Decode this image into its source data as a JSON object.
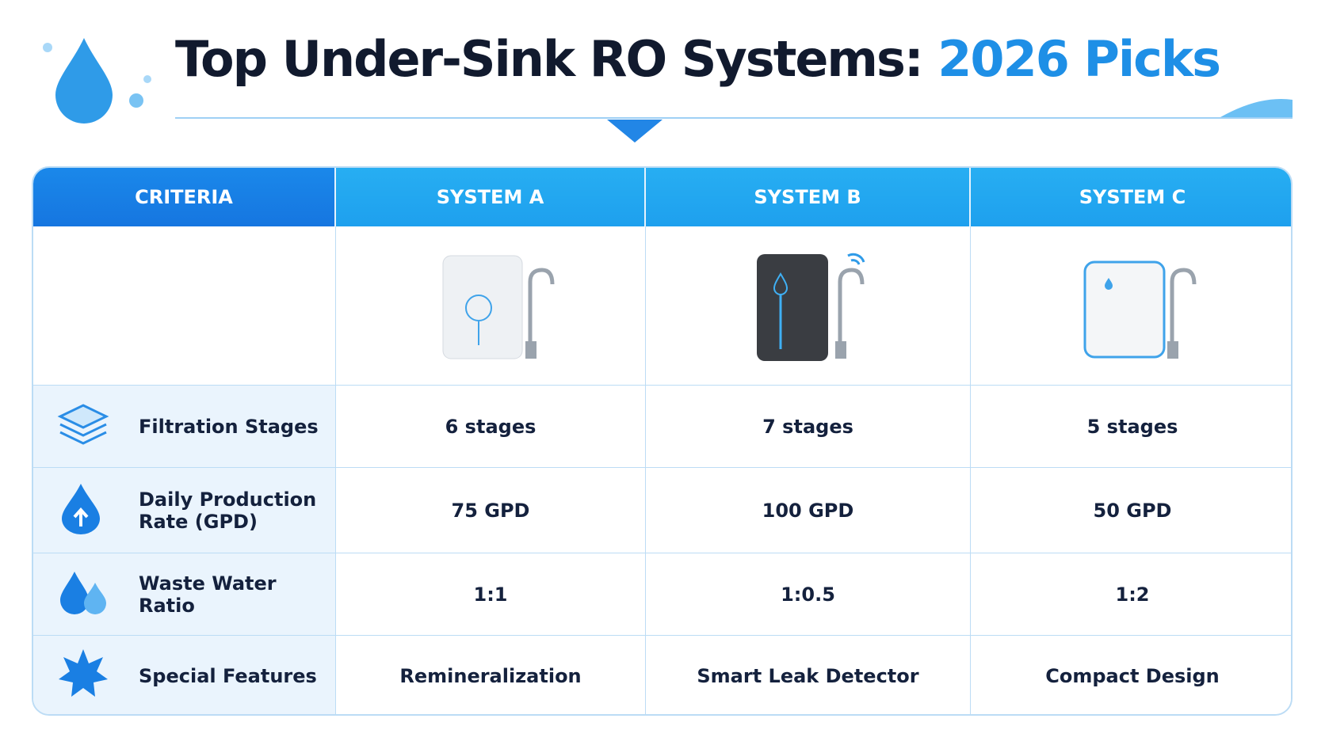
{
  "header": {
    "title": "Top Under-Sink RO Systems:",
    "title_highlight": "2026 Picks"
  },
  "table": {
    "columns": [
      "CRITERIA",
      "SYSTEM A",
      "SYSTEM B",
      "SYSTEM C"
    ],
    "rows": [
      [
        "Filtration Stages",
        "6 stages",
        "7 stages",
        "5 stages"
      ],
      [
        "Daily Production Rate (GPD)",
        "75 GPD",
        "100 GPD",
        "50 GPD"
      ],
      [
        "Waste Water Ratio",
        "1:1",
        "1:0.5",
        "1:2"
      ],
      [
        "Special Features",
        "Remineralization",
        "Smart Leak Detector",
        "Compact Design"
      ]
    ]
  }
}
